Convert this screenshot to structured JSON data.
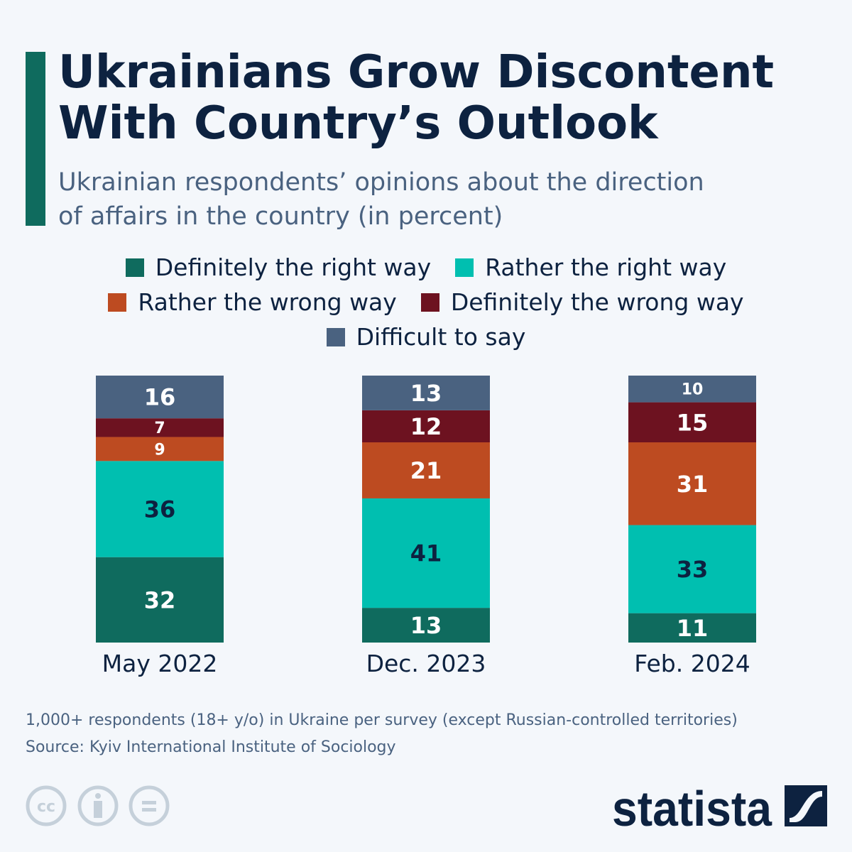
{
  "title_line1": "Ukrainians Grow Discontent",
  "title_line2": "With Country’s Outlook",
  "subtitle_line1": "Ukrainian respondents’ opinions about the direction",
  "subtitle_line2": "of affairs in the country (in percent)",
  "footnote": "1,000+ respondents (18+ y/o) in Ukraine per survey (except Russian-controlled territories)",
  "source": "Source: Kyiv International Institute of Sociology",
  "brand": "statista",
  "chart_data": {
    "type": "bar",
    "stacked": true,
    "categories": [
      "May 2022",
      "Dec. 2023",
      "Feb. 2024"
    ],
    "ylim": [
      0,
      100
    ],
    "legend_placement": "top-center",
    "series": [
      {
        "name": "Definitely the right way",
        "color": "#0f6b5e",
        "label_color": "#ffffff",
        "values": [
          32,
          13,
          11
        ]
      },
      {
        "name": "Rather the right way",
        "color": "#00bfb0",
        "label_color": "#0d2240",
        "values": [
          36,
          41,
          33
        ]
      },
      {
        "name": "Rather the wrong way",
        "color": "#bd4b21",
        "label_color": "#ffffff",
        "values": [
          9,
          21,
          31
        ]
      },
      {
        "name": "Definitely the wrong way",
        "color": "#6d1220",
        "label_color": "#ffffff",
        "values": [
          7,
          12,
          15
        ]
      },
      {
        "name": "Difficult to say",
        "color": "#4a6280",
        "label_color": "#ffffff",
        "values": [
          16,
          13,
          10
        ]
      }
    ]
  }
}
